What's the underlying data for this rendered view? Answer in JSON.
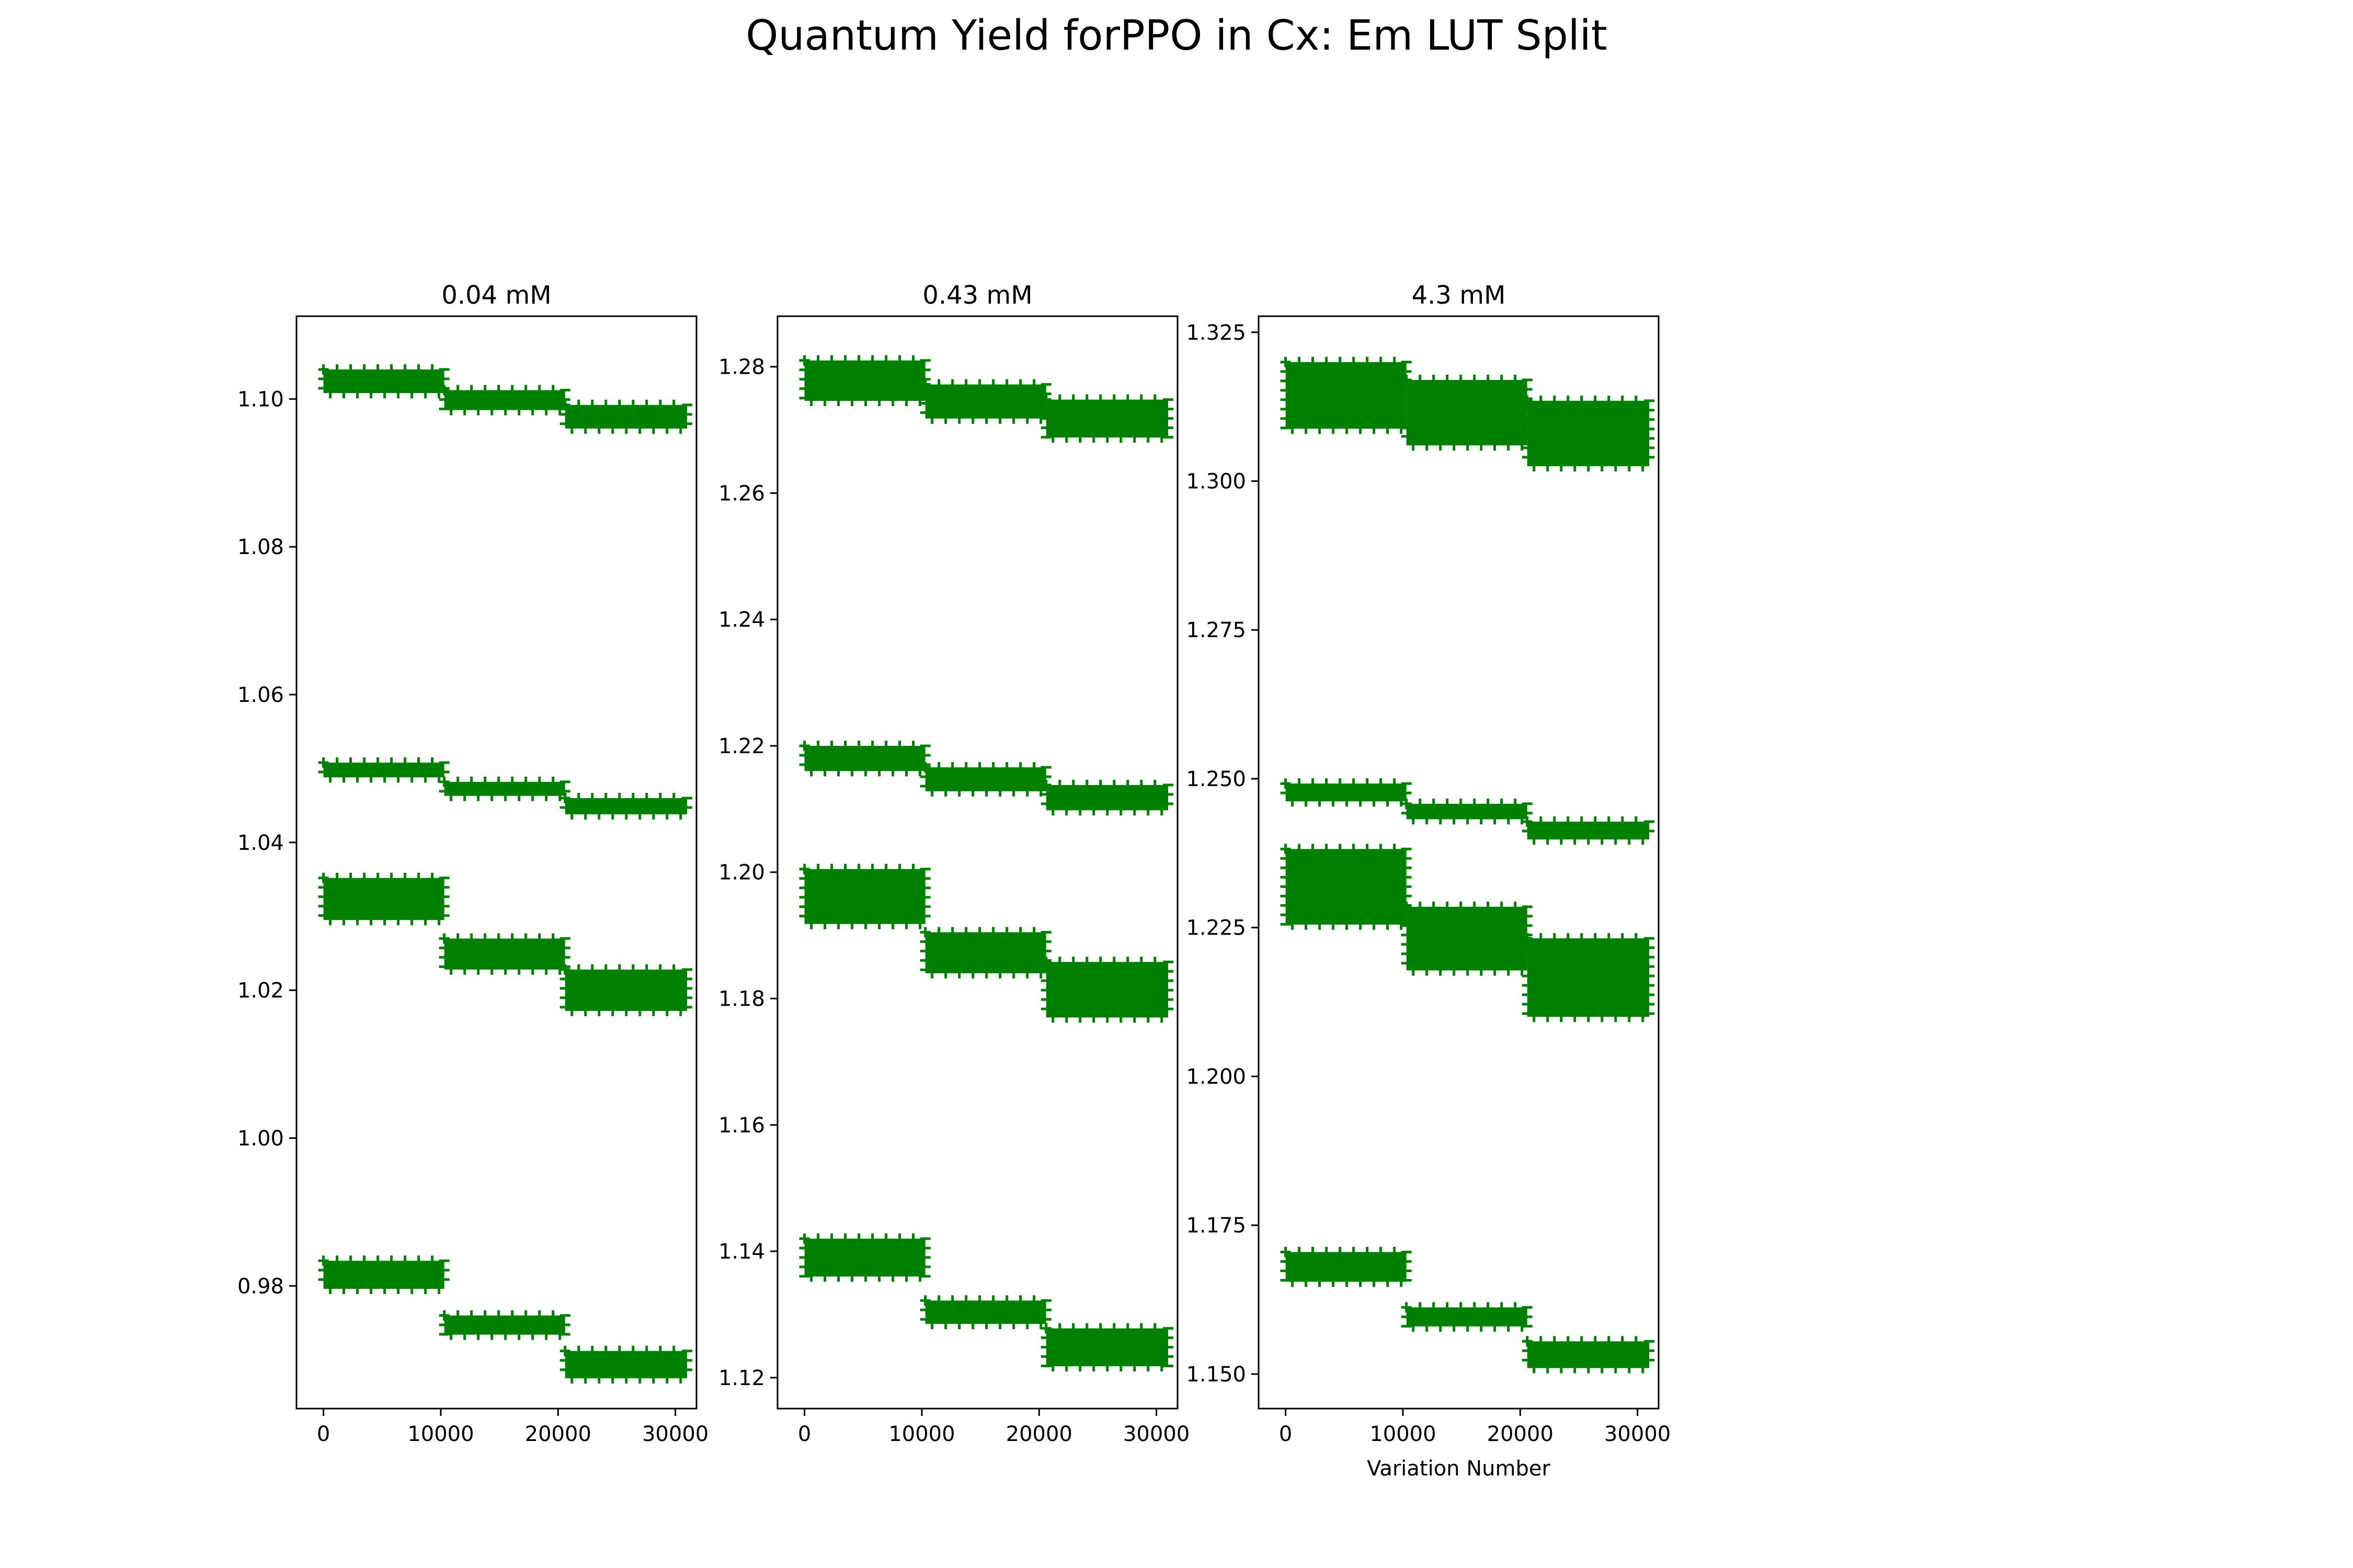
{
  "figure": {
    "title": "Quantum Yield forPPO in Cx: Em LUT Split",
    "marker_color": "#008000"
  },
  "chart_data": [
    {
      "type": "scatter",
      "title": "0.04 mM",
      "xlabel": "",
      "ylabel": "",
      "xlim": [
        -2300,
        31800
      ],
      "ylim": [
        0.9634,
        1.1112
      ],
      "xticks": [
        0,
        10000,
        20000,
        30000
      ],
      "xtick_labels": [
        "0",
        "10000",
        "20000",
        "30000"
      ],
      "yticks": [
        0.98,
        1.0,
        1.02,
        1.04,
        1.06,
        1.08,
        1.1
      ],
      "ytick_labels": [
        "0.98",
        "1.00",
        "1.02",
        "1.04",
        "1.06",
        "1.08",
        "1.10"
      ],
      "grid": false,
      "series": [
        {
          "values": [
            {
              "x0": 0,
              "x1": 10300,
              "y0": 1.1008,
              "y1": 1.104
            },
            {
              "x0": 10300,
              "x1": 20600,
              "y0": 1.0985,
              "y1": 1.1012
            },
            {
              "x0": 20600,
              "x1": 31000,
              "y0": 1.096,
              "y1": 1.0992
            },
            {
              "x0": 0,
              "x1": 10300,
              "y0": 1.0488,
              "y1": 1.0508
            },
            {
              "x0": 10300,
              "x1": 20600,
              "y0": 1.0463,
              "y1": 1.0482
            },
            {
              "x0": 20600,
              "x1": 31000,
              "y0": 1.0438,
              "y1": 1.046
            },
            {
              "x0": 0,
              "x1": 10300,
              "y0": 1.0295,
              "y1": 1.0352
            },
            {
              "x0": 10300,
              "x1": 20600,
              "y0": 1.0228,
              "y1": 1.027
            },
            {
              "x0": 20600,
              "x1": 31000,
              "y0": 1.0172,
              "y1": 1.0228
            },
            {
              "x0": 0,
              "x1": 10300,
              "y0": 0.9796,
              "y1": 0.9834
            },
            {
              "x0": 10300,
              "x1": 20600,
              "y0": 0.9734,
              "y1": 0.976
            },
            {
              "x0": 20600,
              "x1": 31000,
              "y0": 0.9675,
              "y1": 0.9712
            }
          ]
        }
      ]
    },
    {
      "type": "scatter",
      "title": "0.43 mM",
      "xlabel": "",
      "ylabel": "",
      "xlim": [
        -2300,
        31800
      ],
      "ylim": [
        1.1151,
        1.288
      ],
      "xticks": [
        0,
        10000,
        20000,
        30000
      ],
      "xtick_labels": [
        "0",
        "10000",
        "20000",
        "30000"
      ],
      "yticks": [
        1.12,
        1.14,
        1.16,
        1.18,
        1.2,
        1.22,
        1.24,
        1.26,
        1.28
      ],
      "ytick_labels": [
        "1.12",
        "1.14",
        "1.16",
        "1.18",
        "1.20",
        "1.22",
        "1.24",
        "1.26",
        "1.28"
      ],
      "grid": false,
      "series": [
        {
          "values": [
            {
              "x0": 0,
              "x1": 10300,
              "y0": 1.2746,
              "y1": 1.281
            },
            {
              "x0": 10300,
              "x1": 20600,
              "y0": 1.2718,
              "y1": 1.2772
            },
            {
              "x0": 20600,
              "x1": 31000,
              "y0": 1.2688,
              "y1": 1.2748
            },
            {
              "x0": 0,
              "x1": 10300,
              "y0": 1.216,
              "y1": 1.22
            },
            {
              "x0": 10300,
              "x1": 20600,
              "y0": 1.2128,
              "y1": 1.2166
            },
            {
              "x0": 20600,
              "x1": 31000,
              "y0": 1.2098,
              "y1": 1.2138
            },
            {
              "x0": 0,
              "x1": 10300,
              "y0": 1.1918,
              "y1": 1.2005
            },
            {
              "x0": 10300,
              "x1": 20600,
              "y0": 1.184,
              "y1": 1.1905
            },
            {
              "x0": 20600,
              "x1": 31000,
              "y0": 1.177,
              "y1": 1.1858
            },
            {
              "x0": 0,
              "x1": 10300,
              "y0": 1.136,
              "y1": 1.142
            },
            {
              "x0": 10300,
              "x1": 20600,
              "y0": 1.1285,
              "y1": 1.1322
            },
            {
              "x0": 20600,
              "x1": 31000,
              "y0": 1.1218,
              "y1": 1.1278
            }
          ]
        }
      ]
    },
    {
      "type": "scatter",
      "title": "4.3 mM",
      "xlabel": "Variation Number",
      "ylabel": "",
      "xlim": [
        -2300,
        31800
      ],
      "ylim": [
        1.1442,
        1.3277
      ],
      "xticks": [
        0,
        10000,
        20000,
        30000
      ],
      "xtick_labels": [
        "0",
        "10000",
        "20000",
        "30000"
      ],
      "yticks": [
        1.15,
        1.175,
        1.2,
        1.225,
        1.25,
        1.275,
        1.3,
        1.325
      ],
      "ytick_labels": [
        "1.150",
        "1.175",
        "1.200",
        "1.225",
        "1.250",
        "1.275",
        "1.300",
        "1.325"
      ],
      "grid": false,
      "series": [
        {
          "values": [
            {
              "x0": 0,
              "x1": 10300,
              "y0": 1.3088,
              "y1": 1.32
            },
            {
              "x0": 10300,
              "x1": 20600,
              "y0": 1.306,
              "y1": 1.317
            },
            {
              "x0": 20600,
              "x1": 31000,
              "y0": 1.3025,
              "y1": 1.3135
            },
            {
              "x0": 0,
              "x1": 10300,
              "y0": 1.2462,
              "y1": 1.2492
            },
            {
              "x0": 10300,
              "x1": 20600,
              "y0": 1.2432,
              "y1": 1.2458
            },
            {
              "x0": 20600,
              "x1": 31000,
              "y0": 1.2398,
              "y1": 1.2428
            },
            {
              "x0": 0,
              "x1": 10300,
              "y0": 1.2255,
              "y1": 1.2382
            },
            {
              "x0": 10300,
              "x1": 20600,
              "y0": 1.2178,
              "y1": 1.2285
            },
            {
              "x0": 20600,
              "x1": 31000,
              "y0": 1.21,
              "y1": 1.2232
            },
            {
              "x0": 0,
              "x1": 10300,
              "y0": 1.1655,
              "y1": 1.1705
            },
            {
              "x0": 10300,
              "x1": 20600,
              "y0": 1.158,
              "y1": 1.1612
            },
            {
              "x0": 20600,
              "x1": 31000,
              "y0": 1.151,
              "y1": 1.1555
            }
          ]
        }
      ]
    }
  ]
}
